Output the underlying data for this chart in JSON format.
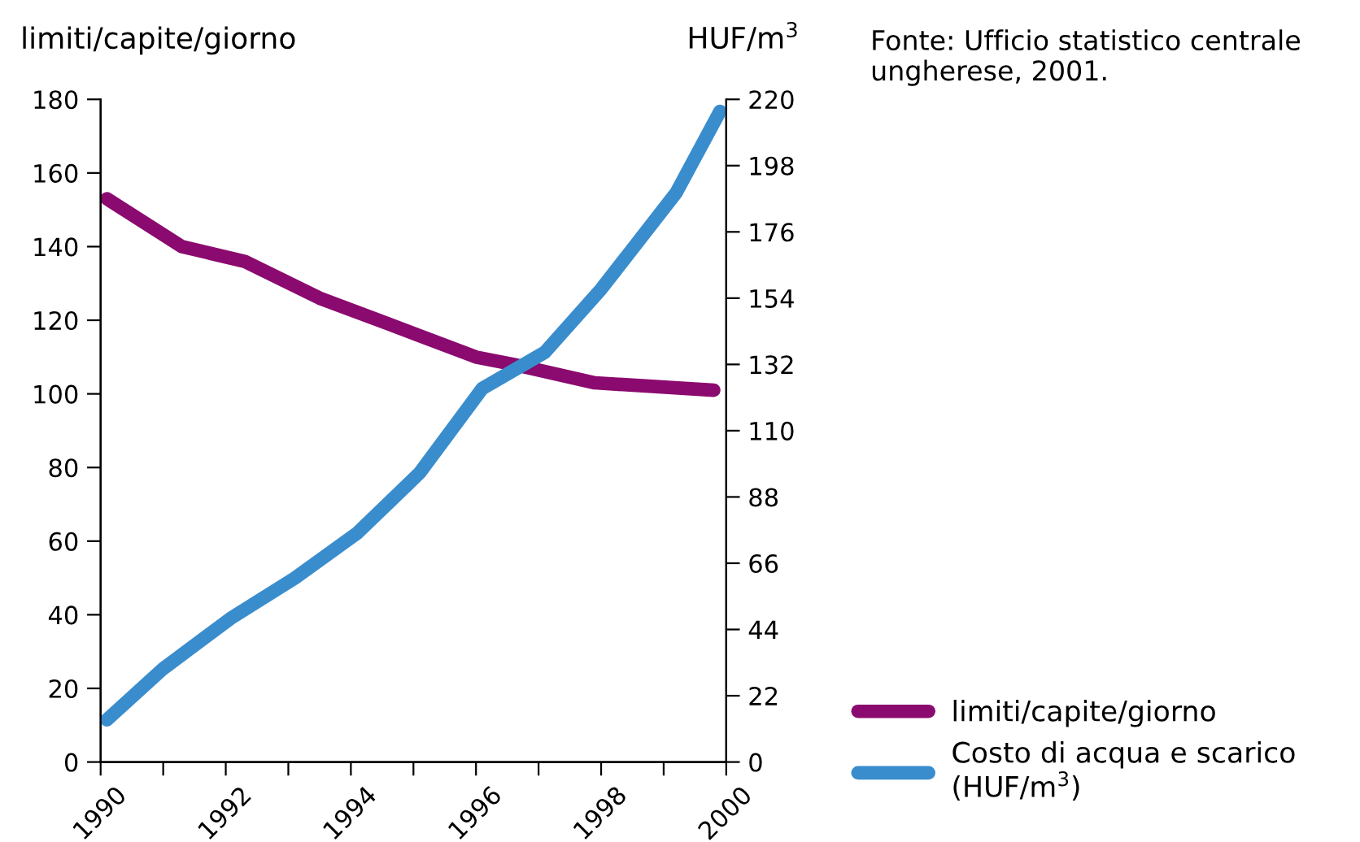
{
  "chart_data": {
    "type": "line",
    "ylabel": "limiti/capite/giorno",
    "y2label": "HUF/m$^{3}$",
    "annotations": [
      "Fonte: Ufficio statistico centrale ungherese, 2001."
    ],
    "series": [
      {
        "name": "limiti/capite/giorno",
        "color": "#8b0a6f",
        "x": [
          1990.1,
          1991.3,
          1992.3,
          1993.5,
          1994.6,
          1996.0,
          1996.6,
          1997.9,
          1999.8
        ],
        "values": [
          153,
          140,
          136,
          126,
          119,
          110,
          108,
          103,
          101
        ]
      },
      {
        "name": "Costo di acqua e scarico\n(HUF/m$^{3}$)",
        "color": "#3a8dcd",
        "axis": "y2",
        "x": [
          1990.1,
          1991.0,
          1992.1,
          1993.1,
          1994.1,
          1995.1,
          1996.1,
          1997.1,
          1998.0,
          1999.2,
          1999.9
        ],
        "values": [
          14,
          31,
          48,
          61,
          76,
          96,
          124,
          136,
          157,
          189,
          216
        ]
      }
    ],
    "xlim": [
      1990,
      2000
    ],
    "xticks": [
      1990,
      {
        "value": 1991,
        "label": null
      },
      1992,
      {
        "value": 1993,
        "label": null
      },
      1994,
      {
        "value": 1995,
        "label": null
      },
      1996,
      {
        "value": 1997,
        "label": null
      },
      1998,
      {
        "value": 1999,
        "label": null
      },
      2000
    ],
    "ylim": [
      0,
      180
    ],
    "yticks": [
      0,
      20,
      40,
      60,
      80,
      100,
      120,
      140,
      160,
      180
    ],
    "y2lim": [
      0,
      220
    ],
    "y2ticks": [
      0,
      22,
      44,
      66,
      88,
      110,
      132,
      154,
      176,
      198,
      220
    ],
    "grid": false,
    "legend": "bottom right",
    "line_style": "solid",
    "marker": "none"
  }
}
